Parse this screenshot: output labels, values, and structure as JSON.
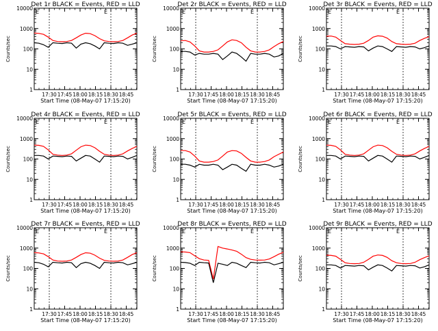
{
  "chart_data": [
    {
      "type": "line",
      "title": "Det 1r BLACK = Events, RED = LLD",
      "xlabel": "Start Time (08-May-07 17:15:20)",
      "ylabel": "Counts/sec",
      "yscale": "log",
      "ylim": [
        1,
        10000
      ],
      "xlim_minutes": [
        "17:15:20",
        "18:55:20"
      ],
      "xticks": [
        "17:30",
        "17:45",
        "18:00",
        "18:15",
        "18:30",
        "18:45"
      ],
      "yticks": [
        "1",
        "10",
        "100",
        "1000",
        "10000"
      ],
      "markers": [
        "17:30",
        "18:30"
      ],
      "corner_labels": [
        "E",
        "E"
      ],
      "series": [
        {
          "name": "LLD",
          "color": "#ff0000",
          "values": [
            600,
            580,
            520,
            380,
            260,
            230,
            225,
            230,
            260,
            350,
            480,
            590,
            560,
            450,
            320,
            250,
            230,
            225,
            230,
            260,
            350,
            480,
            590
          ]
        },
        {
          "name": "Events",
          "color": "#000000",
          "values": [
            200,
            190,
            160,
            120,
            200,
            190,
            185,
            200,
            190,
            110,
            170,
            200,
            180,
            140,
            100,
            200,
            190,
            185,
            200,
            190,
            150,
            170,
            200
          ]
        }
      ]
    },
    {
      "type": "line",
      "title": "Det 2r BLACK = Events, RED = LLD",
      "xlabel": "Start Time (08-May-07 17:15:20)",
      "ylabel": "Counts/sec",
      "yscale": "log",
      "ylim": [
        1,
        10000
      ],
      "xlim_minutes": [
        "17:15:20",
        "18:55:20"
      ],
      "xticks": [
        "17:30",
        "17:45",
        "18:00",
        "18:15",
        "18:30",
        "18:45"
      ],
      "yticks": [
        "1",
        "10",
        "100",
        "1000",
        "10000"
      ],
      "markers": [
        "17:30",
        "18:30"
      ],
      "corner_labels": [
        "E",
        "E"
      ],
      "series": [
        {
          "name": "LLD",
          "color": "#ff0000",
          "values": [
            250,
            260,
            220,
            140,
            80,
            70,
            70,
            75,
            90,
            140,
            220,
            280,
            260,
            200,
            120,
            80,
            70,
            70,
            75,
            90,
            130,
            180,
            230
          ]
        },
        {
          "name": "Events",
          "color": "#000000",
          "values": [
            75,
            75,
            70,
            50,
            60,
            55,
            55,
            60,
            55,
            30,
            45,
            70,
            60,
            40,
            25,
            60,
            55,
            55,
            60,
            55,
            40,
            45,
            60
          ]
        }
      ]
    },
    {
      "type": "line",
      "title": "Det 3r BLACK = Events, RED = LLD",
      "xlabel": "Start Time (08-May-07 17:15:20)",
      "ylabel": "Counts/sec",
      "yscale": "log",
      "ylim": [
        1,
        10000
      ],
      "xlim_minutes": [
        "17:15:20",
        "18:55:20"
      ],
      "xticks": [
        "17:30",
        "17:45",
        "18:00",
        "18:15",
        "18:30",
        "18:45"
      ],
      "yticks": [
        "1",
        "10",
        "100",
        "1000",
        "10000"
      ],
      "markers": [
        "17:30",
        "18:30"
      ],
      "corner_labels": [
        "E",
        "E"
      ],
      "series": [
        {
          "name": "LLD",
          "color": "#ff0000",
          "values": [
            420,
            430,
            380,
            260,
            180,
            170,
            165,
            170,
            190,
            260,
            380,
            440,
            420,
            340,
            230,
            180,
            170,
            165,
            170,
            190,
            260,
            330,
            400
          ]
        },
        {
          "name": "Events",
          "color": "#000000",
          "values": [
            140,
            140,
            130,
            100,
            130,
            125,
            120,
            130,
            125,
            80,
            110,
            140,
            130,
            100,
            75,
            130,
            125,
            120,
            130,
            125,
            100,
            115,
            140
          ]
        }
      ]
    },
    {
      "type": "line",
      "title": "Det 4r BLACK = Events, RED = LLD",
      "xlabel": "Start Time (08-May-07 17:15:20)",
      "ylabel": "Counts/sec",
      "yscale": "log",
      "ylim": [
        1,
        10000
      ],
      "xlim_minutes": [
        "17:15:20",
        "18:55:20"
      ],
      "xticks": [
        "17:30",
        "17:45",
        "18:00",
        "18:15",
        "18:30",
        "18:45"
      ],
      "yticks": [
        "1",
        "10",
        "100",
        "1000",
        "10000"
      ],
      "markers": [
        "17:30",
        "18:30"
      ],
      "corner_labels": [
        "E",
        "E"
      ],
      "series": [
        {
          "name": "LLD",
          "color": "#ff0000",
          "values": [
            480,
            470,
            420,
            280,
            170,
            155,
            150,
            155,
            180,
            270,
            400,
            480,
            460,
            360,
            240,
            170,
            155,
            150,
            155,
            180,
            250,
            330,
            420
          ]
        },
        {
          "name": "Events",
          "color": "#000000",
          "values": [
            150,
            150,
            140,
            100,
            140,
            135,
            130,
            140,
            135,
            80,
            110,
            150,
            140,
            100,
            70,
            140,
            135,
            130,
            140,
            135,
            100,
            120,
            150
          ]
        }
      ]
    },
    {
      "type": "line",
      "title": "Det 5r BLACK = Events, RED = LLD",
      "xlabel": "Start Time (08-May-07 17:15:20)",
      "ylabel": "Counts/sec",
      "yscale": "log",
      "ylim": [
        1,
        10000
      ],
      "xlim_minutes": [
        "17:15:20",
        "18:55:20"
      ],
      "xticks": [
        "17:30",
        "17:45",
        "18:00",
        "18:15",
        "18:30",
        "18:45"
      ],
      "yticks": [
        "1",
        "10",
        "100",
        "1000",
        "10000"
      ],
      "markers": [
        "17:30",
        "18:30"
      ],
      "corner_labels": [
        "E",
        "E"
      ],
      "series": [
        {
          "name": "LLD",
          "color": "#ff0000",
          "values": [
            260,
            260,
            220,
            140,
            80,
            70,
            70,
            75,
            90,
            140,
            220,
            260,
            250,
            190,
            120,
            80,
            70,
            70,
            75,
            90,
            130,
            170,
            220
          ]
        },
        {
          "name": "Events",
          "color": "#000000",
          "values": [
            55,
            55,
            50,
            40,
            55,
            50,
            50,
            55,
            50,
            30,
            40,
            55,
            50,
            35,
            25,
            55,
            50,
            50,
            55,
            50,
            40,
            45,
            55
          ]
        }
      ]
    },
    {
      "type": "line",
      "title": "Det 6r BLACK = Events, RED = LLD",
      "xlabel": "Start Time (08-May-07 17:15:20)",
      "ylabel": "Counts/sec",
      "yscale": "log",
      "ylim": [
        1,
        10000
      ],
      "xlim_minutes": [
        "17:15:20",
        "18:55:20"
      ],
      "xticks": [
        "17:30",
        "17:45",
        "18:00",
        "18:15",
        "18:30",
        "18:45"
      ],
      "yticks": [
        "1",
        "10",
        "100",
        "1000",
        "10000"
      ],
      "markers": [
        "17:30",
        "18:30"
      ],
      "corner_labels": [
        "E",
        "E"
      ],
      "series": [
        {
          "name": "LLD",
          "color": "#ff0000",
          "values": [
            480,
            470,
            420,
            280,
            170,
            155,
            150,
            155,
            180,
            270,
            400,
            480,
            460,
            360,
            240,
            170,
            155,
            150,
            155,
            180,
            250,
            330,
            420
          ]
        },
        {
          "name": "Events",
          "color": "#000000",
          "values": [
            150,
            150,
            140,
            100,
            140,
            135,
            130,
            140,
            135,
            80,
            110,
            150,
            140,
            100,
            70,
            140,
            135,
            130,
            140,
            135,
            100,
            120,
            150
          ]
        }
      ]
    },
    {
      "type": "line",
      "title": "Det 7r BLACK = Events, RED = LLD",
      "xlabel": "Start Time (08-May-07 17:15:20)",
      "ylabel": "Counts/sec",
      "yscale": "log",
      "ylim": [
        1,
        10000
      ],
      "xlim_minutes": [
        "17:15:20",
        "18:55:20"
      ],
      "xticks": [
        "17:30",
        "17:45",
        "18:00",
        "18:15",
        "18:30",
        "18:45"
      ],
      "yticks": [
        "1",
        "10",
        "100",
        "1000",
        "10000"
      ],
      "markers": [
        "17:30",
        "18:30"
      ],
      "corner_labels": [
        "E",
        "E"
      ],
      "series": [
        {
          "name": "LLD",
          "color": "#ff0000",
          "values": [
            600,
            580,
            520,
            380,
            260,
            230,
            225,
            230,
            260,
            350,
            480,
            590,
            560,
            450,
            320,
            250,
            230,
            225,
            230,
            260,
            350,
            480,
            590
          ]
        },
        {
          "name": "Events",
          "color": "#000000",
          "values": [
            200,
            190,
            160,
            120,
            200,
            190,
            185,
            200,
            190,
            110,
            170,
            200,
            180,
            140,
            100,
            200,
            190,
            185,
            200,
            190,
            150,
            170,
            200
          ]
        }
      ]
    },
    {
      "type": "line",
      "title": "Det 8r BLACK = Events, RED = LLD",
      "xlabel": "Start Time (08-May-07 17:15:20)",
      "ylabel": "Counts/sec",
      "yscale": "log",
      "ylim": [
        1,
        10000
      ],
      "xlim_minutes": [
        "17:15:20",
        "18:55:20"
      ],
      "xticks": [
        "17:30",
        "17:45",
        "18:00",
        "18:15",
        "18:30",
        "18:45"
      ],
      "yticks": [
        "1",
        "10",
        "100",
        "1000",
        "10000"
      ],
      "markers": [
        "17:30",
        "18:30"
      ],
      "corner_labels": [
        "E",
        "E"
      ],
      "series": [
        {
          "name": "LLD",
          "color": "#ff0000",
          "values": [
            650,
            640,
            600,
            420,
            300,
            260,
            250,
            30,
            1200,
            1000,
            900,
            800,
            700,
            500,
            340,
            280,
            260,
            255,
            260,
            290,
            380,
            500,
            620
          ]
        },
        {
          "name": "Events",
          "color": "#000000",
          "values": [
            200,
            195,
            180,
            140,
            200,
            190,
            185,
            20,
            180,
            160,
            140,
            200,
            180,
            140,
            110,
            200,
            190,
            185,
            200,
            190,
            150,
            170,
            200
          ]
        }
      ]
    },
    {
      "type": "line",
      "title": "Det 9r BLACK = Events, RED = LLD",
      "xlabel": "Start Time (08-May-07 17:15:20)",
      "ylabel": "Counts/sec",
      "yscale": "log",
      "ylim": [
        1,
        10000
      ],
      "xlim_minutes": [
        "17:15:20",
        "18:55:20"
      ],
      "xticks": [
        "17:30",
        "17:45",
        "18:00",
        "18:15",
        "18:30",
        "18:45"
      ],
      "yticks": [
        "1",
        "10",
        "100",
        "1000",
        "10000"
      ],
      "markers": [
        "17:30",
        "18:30"
      ],
      "corner_labels": [
        "E",
        "E"
      ],
      "series": [
        {
          "name": "LLD",
          "color": "#ff0000",
          "values": [
            450,
            440,
            400,
            280,
            190,
            175,
            170,
            175,
            200,
            280,
            400,
            460,
            440,
            350,
            240,
            190,
            175,
            170,
            175,
            200,
            270,
            340,
            420
          ]
        },
        {
          "name": "Events",
          "color": "#000000",
          "values": [
            150,
            150,
            140,
            105,
            140,
            135,
            130,
            140,
            135,
            85,
            115,
            150,
            140,
            105,
            75,
            140,
            135,
            130,
            140,
            135,
            105,
            120,
            150
          ]
        }
      ]
    }
  ]
}
